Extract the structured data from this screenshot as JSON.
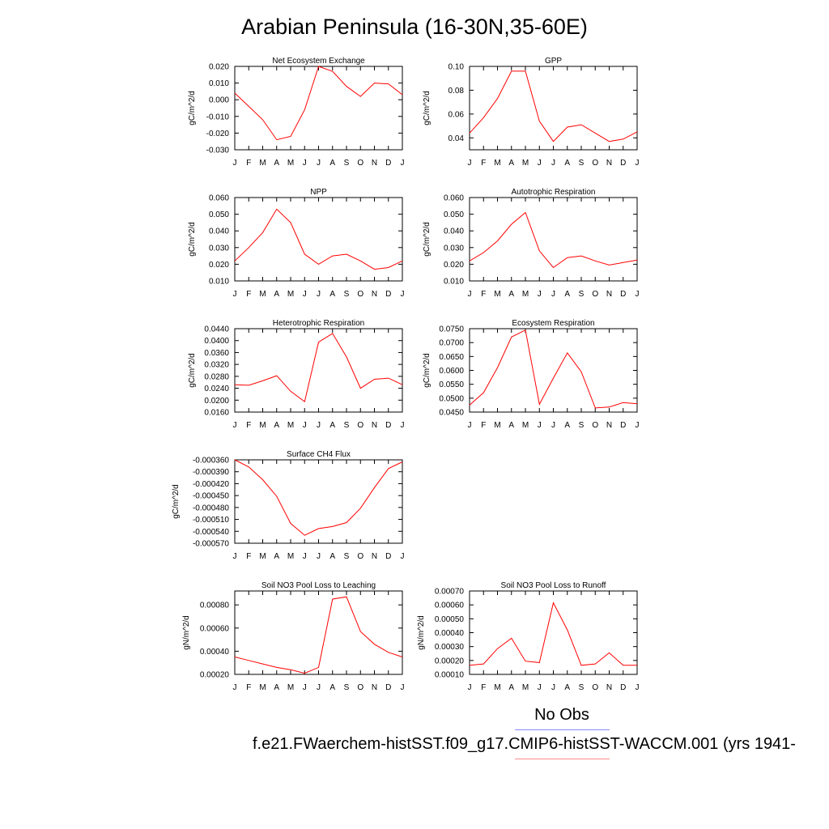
{
  "title": "Arabian Peninsula (16-30N,35-60E)",
  "legend": {
    "label": "No Obs",
    "obs_color": "#8a8aff",
    "model_color": "#ff8a8a"
  },
  "caption": "f.e21.FWaerchem-histSST.f09_g17.CMIP6-histSST-WACCM.001 (yrs 1941-",
  "series_color": "#ff0000",
  "chart_data": [
    {
      "type": "line",
      "title": "Net Ecosystem Exchange",
      "ylabel": "gC/m^2/d",
      "x": [
        "J",
        "F",
        "M",
        "A",
        "M",
        "J",
        "J",
        "A",
        "S",
        "O",
        "N",
        "D",
        "J"
      ],
      "values": [
        0.004,
        -0.004,
        -0.012,
        -0.024,
        -0.022,
        -0.006,
        0.02,
        0.017,
        0.008,
        0.002,
        0.01,
        0.0095,
        0.003
      ],
      "ylim": [
        -0.03,
        0.02
      ],
      "yticks": [
        -0.03,
        -0.02,
        -0.01,
        0.0,
        0.01,
        0.02
      ],
      "yticklabels": [
        "-0.030",
        "-0.020",
        "-0.010",
        "0.000",
        "0.010",
        "0.020"
      ]
    },
    {
      "type": "line",
      "title": "GPP",
      "ylabel": "gC/m^2/d",
      "x": [
        "J",
        "F",
        "M",
        "A",
        "M",
        "J",
        "J",
        "A",
        "S",
        "O",
        "N",
        "D",
        "J"
      ],
      "values": [
        0.044,
        0.057,
        0.073,
        0.096,
        0.096,
        0.054,
        0.037,
        0.049,
        0.051,
        0.044,
        0.037,
        0.039,
        0.045
      ],
      "ylim": [
        0.03,
        0.1
      ],
      "yticks": [
        0.04,
        0.06,
        0.08,
        0.1
      ],
      "yticklabels": [
        "0.04",
        "0.06",
        "0.08",
        "0.10"
      ]
    },
    {
      "type": "line",
      "title": "NPP",
      "ylabel": "gC/m^2/d",
      "x": [
        "J",
        "F",
        "M",
        "A",
        "M",
        "J",
        "J",
        "A",
        "S",
        "O",
        "N",
        "D",
        "J"
      ],
      "values": [
        0.022,
        0.03,
        0.039,
        0.053,
        0.045,
        0.026,
        0.02,
        0.025,
        0.026,
        0.022,
        0.017,
        0.018,
        0.022
      ],
      "ylim": [
        0.01,
        0.06
      ],
      "yticks": [
        0.01,
        0.02,
        0.03,
        0.04,
        0.05,
        0.06
      ],
      "yticklabels": [
        "0.010",
        "0.020",
        "0.030",
        "0.040",
        "0.050",
        "0.060"
      ]
    },
    {
      "type": "line",
      "title": "Autotrophic Respiration",
      "ylabel": "gC/m^2/d",
      "x": [
        "J",
        "F",
        "M",
        "A",
        "M",
        "J",
        "J",
        "A",
        "S",
        "O",
        "N",
        "D",
        "J"
      ],
      "values": [
        0.022,
        0.027,
        0.034,
        0.044,
        0.051,
        0.028,
        0.018,
        0.024,
        0.025,
        0.022,
        0.0195,
        0.021,
        0.0225
      ],
      "ylim": [
        0.01,
        0.06
      ],
      "yticks": [
        0.01,
        0.02,
        0.03,
        0.04,
        0.05,
        0.06
      ],
      "yticklabels": [
        "0.010",
        "0.020",
        "0.030",
        "0.040",
        "0.050",
        "0.060"
      ]
    },
    {
      "type": "line",
      "title": "Heterotrophic Respiration",
      "ylabel": "gC/m^2/d",
      "x": [
        "J",
        "F",
        "M",
        "A",
        "M",
        "J",
        "J",
        "A",
        "S",
        "O",
        "N",
        "D",
        "J"
      ],
      "values": [
        0.0252,
        0.025,
        0.0265,
        0.0282,
        0.023,
        0.0195,
        0.0395,
        0.0424,
        0.0345,
        0.024,
        0.027,
        0.0274,
        0.0252
      ],
      "ylim": [
        0.016,
        0.044
      ],
      "yticks": [
        0.016,
        0.02,
        0.024,
        0.028,
        0.032,
        0.036,
        0.04,
        0.044
      ],
      "yticklabels": [
        "0.0160",
        "0.0200",
        "0.0240",
        "0.0280",
        "0.0320",
        "0.0360",
        "0.0400",
        "0.0440"
      ]
    },
    {
      "type": "line",
      "title": "Ecosystem Respiration",
      "ylabel": "gC/m^2/d",
      "x": [
        "J",
        "F",
        "M",
        "A",
        "M",
        "J",
        "J",
        "A",
        "S",
        "O",
        "N",
        "D",
        "J"
      ],
      "values": [
        0.0475,
        0.052,
        0.061,
        0.072,
        0.0745,
        0.0478,
        0.0572,
        0.0663,
        0.0595,
        0.0465,
        0.0468,
        0.0484,
        0.048
      ],
      "ylim": [
        0.045,
        0.075
      ],
      "yticks": [
        0.045,
        0.05,
        0.055,
        0.06,
        0.065,
        0.07,
        0.075
      ],
      "yticklabels": [
        "0.0450",
        "0.0500",
        "0.0550",
        "0.0600",
        "0.0650",
        "0.0700",
        "0.0750"
      ]
    },
    {
      "type": "line",
      "title": "Surface CH4 Flux",
      "ylabel": "gC/m^2/d",
      "x": [
        "J",
        "F",
        "M",
        "A",
        "M",
        "J",
        "J",
        "A",
        "S",
        "O",
        "N",
        "D",
        "J"
      ],
      "values": [
        -0.00036,
        -0.000378,
        -0.00041,
        -0.000452,
        -0.00052,
        -0.00055,
        -0.000533,
        -0.000528,
        -0.000518,
        -0.000482,
        -0.00043,
        -0.000382,
        -0.000365
      ],
      "ylim": [
        -0.00057,
        -0.00036
      ],
      "yticks": [
        -0.00057,
        -0.00054,
        -0.00051,
        -0.00048,
        -0.00045,
        -0.00042,
        -0.00039,
        -0.00036
      ],
      "yticklabels": [
        "-0.000570",
        "-0.000540",
        "-0.000510",
        "-0.000480",
        "-0.000450",
        "-0.000420",
        "-0.000390",
        "-0.000360"
      ]
    },
    {
      "type": "line",
      "title": "Soil NO3 Pool Loss to Leaching",
      "ylabel": "gN/m^2/d",
      "x": [
        "J",
        "F",
        "M",
        "A",
        "M",
        "J",
        "J",
        "A",
        "S",
        "O",
        "N",
        "D",
        "J"
      ],
      "values": [
        0.00035,
        0.00032,
        0.00029,
        0.00026,
        0.00024,
        0.00021,
        0.00026,
        0.00085,
        0.00087,
        0.00057,
        0.00046,
        0.00039,
        0.00035
      ],
      "ylim": [
        0.0002,
        0.00092
      ],
      "yticks": [
        0.0002,
        0.0004,
        0.0006,
        0.0008
      ],
      "yticklabels": [
        "0.00020",
        "0.00040",
        "0.00060",
        "0.00080"
      ]
    },
    {
      "type": "line",
      "title": "Soil NO3 Pool Loss to Runoff",
      "ylabel": "gN/m^2/d",
      "x": [
        "J",
        "F",
        "M",
        "A",
        "M",
        "J",
        "J",
        "A",
        "S",
        "O",
        "N",
        "D",
        "J"
      ],
      "values": [
        0.000165,
        0.000175,
        0.000285,
        0.00036,
        0.000195,
        0.000185,
        0.000615,
        0.00042,
        0.000165,
        0.000175,
        0.000255,
        0.000165,
        0.000165
      ],
      "ylim": [
        0.0001,
        0.0007
      ],
      "yticks": [
        0.0001,
        0.0002,
        0.0003,
        0.0004,
        0.0005,
        0.0006,
        0.0007
      ],
      "yticklabels": [
        "0.00010",
        "0.00020",
        "0.00030",
        "0.00040",
        "0.00050",
        "0.00060",
        "0.00070"
      ]
    }
  ]
}
